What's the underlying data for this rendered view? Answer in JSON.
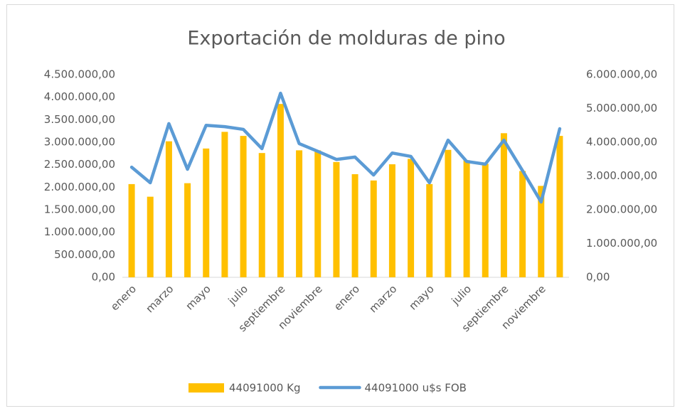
{
  "chart_data": {
    "type": "bar_line",
    "title": "Exportación de molduras de pino",
    "categories": [
      "enero",
      null,
      "marzo",
      null,
      "mayo",
      null,
      "julio",
      null,
      "septiembre",
      null,
      "noviembre",
      null,
      "enero",
      null,
      "marzo",
      null,
      "mayo",
      null,
      "julio",
      null,
      "septiembre",
      null,
      "noviembre",
      null
    ],
    "series": [
      {
        "name": "44091000 Kg",
        "type": "bar",
        "color": "#ffc000",
        "axis": "y",
        "values": [
          2070000,
          1790000,
          3020000,
          2090000,
          2860000,
          3230000,
          3140000,
          2760000,
          3850000,
          2820000,
          2820000,
          2560000,
          2290000,
          2150000,
          2510000,
          2630000,
          2070000,
          2830000,
          2600000,
          2520000,
          3200000,
          2360000,
          2030000,
          3140000
        ]
      },
      {
        "name": "44091000 u$s FOB",
        "type": "line",
        "color": "#5b9bd5",
        "axis": "y2",
        "values": [
          3260000,
          2800000,
          4550000,
          3200000,
          4500000,
          4460000,
          4380000,
          3810000,
          5450000,
          3960000,
          3730000,
          3490000,
          3560000,
          3030000,
          3680000,
          3580000,
          2800000,
          4060000,
          3430000,
          3350000,
          4060000,
          3160000,
          2230000,
          4400000
        ]
      }
    ],
    "ylim": [
      0,
      4500000
    ],
    "yticks": [
      {
        "value": 0,
        "label": "0,00"
      },
      {
        "value": 500000,
        "label": "500.000,00"
      },
      {
        "value": 1000000,
        "label": "1.000.000,00"
      },
      {
        "value": 1500000,
        "label": "1.500.000,00"
      },
      {
        "value": 2000000,
        "label": "2.000.000,00"
      },
      {
        "value": 2500000,
        "label": "2.500.000,00"
      },
      {
        "value": 3000000,
        "label": "3.000.000,00"
      },
      {
        "value": 3500000,
        "label": "3.500.000,00"
      },
      {
        "value": 4000000,
        "label": "4.000.000,00"
      },
      {
        "value": 4500000,
        "label": "4.500.000,00"
      }
    ],
    "y2lim": [
      0,
      6000000
    ],
    "y2ticks": [
      {
        "value": 0,
        "label": "0,00"
      },
      {
        "value": 1000000,
        "label": "1.000.000,00"
      },
      {
        "value": 2000000,
        "label": "2.000.000,00"
      },
      {
        "value": 3000000,
        "label": "3.000.000,00"
      },
      {
        "value": 4000000,
        "label": "4.000.000,00"
      },
      {
        "value": 5000000,
        "label": "5.000.000,00"
      },
      {
        "value": 6000000,
        "label": "6.000.000,00"
      }
    ],
    "legend": "bottom"
  }
}
